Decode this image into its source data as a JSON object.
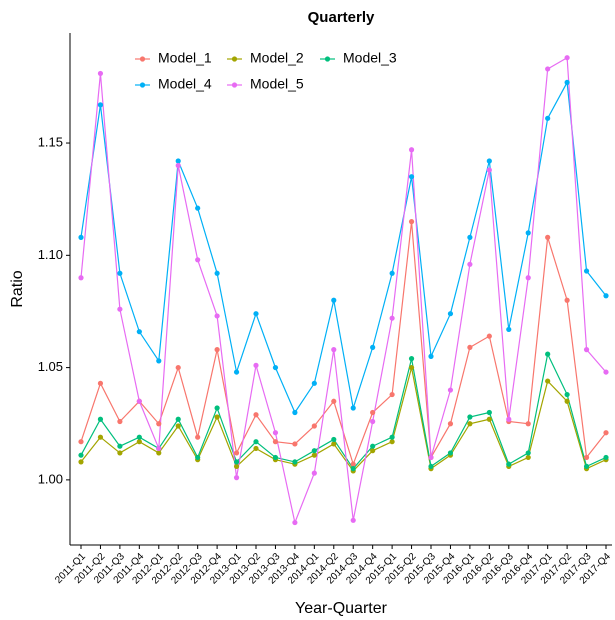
{
  "chart_data": {
    "type": "line",
    "title": "Quarterly",
    "x_label": "Year-Quarter",
    "y_label": "Ratio",
    "categories": [
      "2011-Q1",
      "2011-Q2",
      "2011-Q3",
      "2011-Q4",
      "2012-Q1",
      "2012-Q2",
      "2012-Q3",
      "2012-Q4",
      "2013-Q1",
      "2013-Q2",
      "2013-Q3",
      "2013-Q4",
      "2014-Q1",
      "2014-Q2",
      "2014-Q3",
      "2014-Q4",
      "2015-Q1",
      "2015-Q2",
      "2015-Q3",
      "2015-Q4",
      "2016-Q1",
      "2016-Q2",
      "2016-Q3",
      "2016-Q4",
      "2017-Q1",
      "2017-Q2",
      "2017-Q3",
      "2017-Q4"
    ],
    "series": [
      {
        "name": "Model_1",
        "color": "#F8766D",
        "values": [
          1.017,
          1.043,
          1.026,
          1.035,
          1.025,
          1.05,
          1.019,
          1.058,
          1.012,
          1.029,
          1.017,
          1.016,
          1.024,
          1.035,
          1.007,
          1.03,
          1.038,
          1.115,
          1.01,
          1.025,
          1.059,
          1.064,
          1.026,
          1.025,
          1.108,
          1.08,
          1.01,
          1.021
        ]
      },
      {
        "name": "Model_2",
        "color": "#A3A500",
        "values": [
          1.008,
          1.019,
          1.012,
          1.017,
          1.012,
          1.024,
          1.009,
          1.028,
          1.006,
          1.014,
          1.009,
          1.007,
          1.011,
          1.016,
          1.004,
          1.013,
          1.017,
          1.05,
          1.005,
          1.011,
          1.025,
          1.027,
          1.006,
          1.01,
          1.044,
          1.035,
          1.005,
          1.009
        ]
      },
      {
        "name": "Model_3",
        "color": "#00BF7D",
        "values": [
          1.011,
          1.027,
          1.015,
          1.019,
          1.014,
          1.027,
          1.01,
          1.032,
          1.008,
          1.017,
          1.01,
          1.008,
          1.013,
          1.018,
          1.005,
          1.015,
          1.019,
          1.054,
          1.006,
          1.012,
          1.028,
          1.03,
          1.007,
          1.012,
          1.056,
          1.038,
          1.006,
          1.01
        ]
      },
      {
        "name": "Model_4",
        "color": "#00B0F6",
        "values": [
          1.108,
          1.167,
          1.092,
          1.066,
          1.053,
          1.142,
          1.121,
          1.092,
          1.048,
          1.074,
          1.05,
          1.03,
          1.043,
          1.08,
          1.032,
          1.059,
          1.092,
          1.135,
          1.055,
          1.074,
          1.108,
          1.142,
          1.067,
          1.11,
          1.161,
          1.177,
          1.093,
          1.082
        ]
      },
      {
        "name": "Model_5",
        "color": "#E76BF3",
        "values": [
          1.09,
          1.181,
          1.076,
          1.035,
          1.014,
          1.14,
          1.098,
          1.073,
          1.001,
          1.051,
          1.021,
          0.981,
          1.003,
          1.058,
          0.982,
          1.026,
          1.072,
          1.147,
          1.01,
          1.04,
          1.096,
          1.138,
          1.027,
          1.09,
          1.183,
          1.188,
          1.058,
          1.048
        ]
      }
    ],
    "ylim": [
      0.971,
      1.199
    ],
    "yticks": [
      {
        "value": 1,
        "label": "1.00"
      },
      1.05,
      {
        "value": 1.1,
        "label": "1.10"
      },
      1.15
    ],
    "grid": false
  }
}
